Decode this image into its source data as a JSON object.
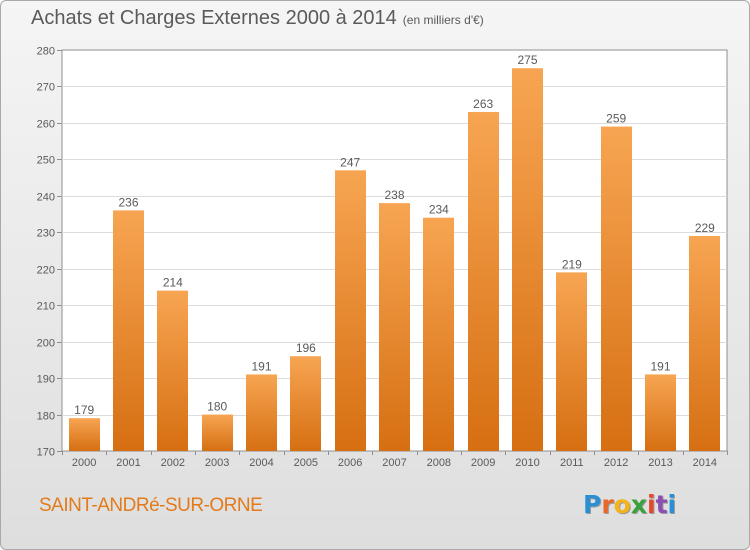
{
  "title": "Achats et Charges Externes 2000 à 2014",
  "subtitle": "(en milliers d'€)",
  "commune": "SAINT-ANDRé-SUR-ORNE",
  "logo": {
    "letters": [
      "P",
      "r",
      "o",
      "x",
      "i",
      "t",
      "i"
    ],
    "colors": [
      "#2a8fd4",
      "#e8692a",
      "#f3b31a",
      "#3aa23a",
      "#e8482a",
      "#8a4fb0",
      "#2a8fd4"
    ]
  },
  "colors": {
    "bar_light": "#f7a552",
    "bar_dark": "#d66f12",
    "text": "#5a5a5a",
    "commune": "#e37b1b"
  },
  "chart_data": {
    "type": "bar",
    "categories": [
      "2000",
      "2001",
      "2002",
      "2003",
      "2004",
      "2005",
      "2006",
      "2007",
      "2008",
      "2009",
      "2010",
      "2011",
      "2012",
      "2013",
      "2014"
    ],
    "values": [
      179,
      236,
      214,
      180,
      191,
      196,
      247,
      238,
      234,
      263,
      275,
      219,
      259,
      191,
      229
    ],
    "ylim": [
      170,
      280
    ],
    "yticks": [
      170,
      180,
      190,
      200,
      210,
      220,
      230,
      240,
      250,
      260,
      270,
      280
    ],
    "grid": true,
    "data_labels": true
  }
}
